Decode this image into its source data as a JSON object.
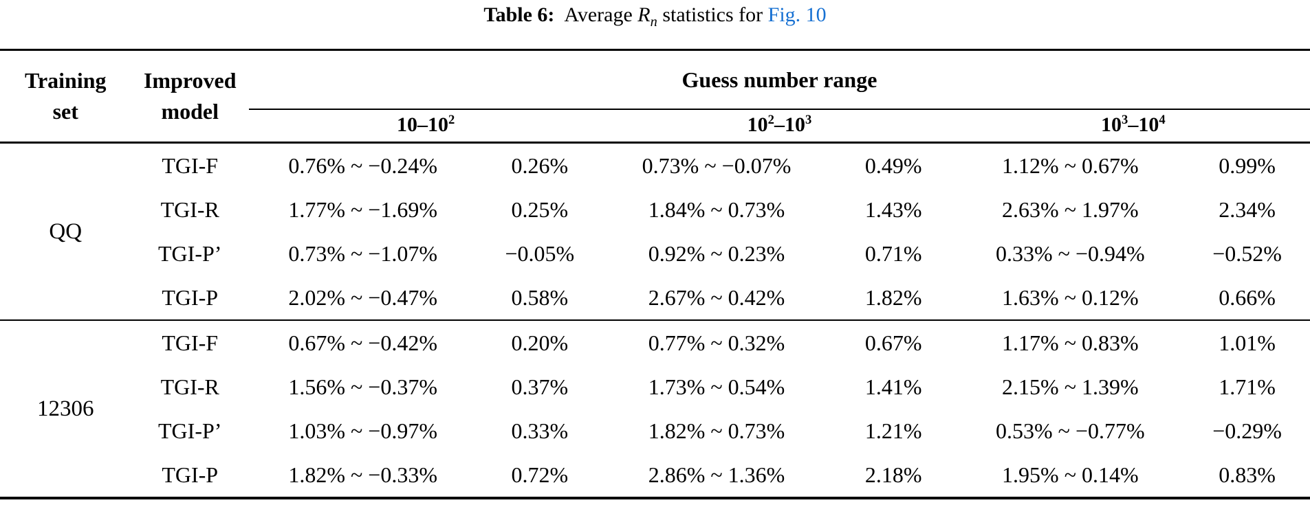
{
  "title": {
    "table_label": "Table 6:",
    "caption_pre": "Average",
    "stat_symbol": "R",
    "stat_subscript": "n",
    "caption_post": "statistics for",
    "figure_link": "Fig. 10",
    "link_color": "#1670D2"
  },
  "table": {
    "col_training": "Training\nset",
    "col_model": "Improved\nmodel",
    "col_range_group": "Guess number range",
    "range_headers": [
      {
        "parts": [
          [
            "10",
            ""
          ],
          [
            "–",
            ""
          ],
          [
            "10",
            "2"
          ]
        ]
      },
      {
        "parts": [
          [
            "10",
            "2"
          ],
          [
            "–",
            ""
          ],
          [
            "10",
            "3"
          ]
        ]
      },
      {
        "parts": [
          [
            "10",
            "3"
          ],
          [
            "–",
            ""
          ],
          [
            "10",
            "4"
          ]
        ]
      }
    ],
    "groups": [
      {
        "training_set": "QQ",
        "rows": [
          {
            "model": "TGI-F",
            "values": [
              "0.76% ~ −0.24%",
              "0.26%",
              "0.73% ~ −0.07%",
              "0.49%",
              "1.12% ~ 0.67%",
              "0.99%"
            ]
          },
          {
            "model": "TGI-R",
            "values": [
              "1.77% ~ −1.69%",
              "0.25%",
              "1.84% ~ 0.73%",
              "1.43%",
              "2.63% ~ 1.97%",
              "2.34%"
            ]
          },
          {
            "model": "TGI-P’",
            "values": [
              "0.73% ~ −1.07%",
              "−0.05%",
              "0.92% ~ 0.23%",
              "0.71%",
              "0.33% ~ −0.94%",
              "−0.52%"
            ]
          },
          {
            "model": "TGI-P",
            "values": [
              "2.02% ~ −0.47%",
              "0.58%",
              "2.67% ~ 0.42%",
              "1.82%",
              "1.63% ~ 0.12%",
              "0.66%"
            ]
          }
        ]
      },
      {
        "training_set": "12306",
        "rows": [
          {
            "model": "TGI-F",
            "values": [
              "0.67% ~ −0.42%",
              "0.20%",
              "0.77% ~ 0.32%",
              "0.67%",
              "1.17% ~ 0.83%",
              "1.01%"
            ]
          },
          {
            "model": "TGI-R",
            "values": [
              "1.56% ~ −0.37%",
              "0.37%",
              "1.73% ~ 0.54%",
              "1.41%",
              "2.15% ~ 1.39%",
              "1.71%"
            ]
          },
          {
            "model": "TGI-P’",
            "values": [
              "1.03% ~ −0.97%",
              "0.33%",
              "1.82% ~ 0.73%",
              "1.21%",
              "0.53% ~ −0.77%",
              "−0.29%"
            ]
          },
          {
            "model": "TGI-P",
            "values": [
              "1.82% ~ −0.33%",
              "0.72%",
              "2.86% ~ 1.36%",
              "2.18%",
              "1.95% ~ 0.14%",
              "0.83%"
            ]
          }
        ]
      }
    ]
  }
}
